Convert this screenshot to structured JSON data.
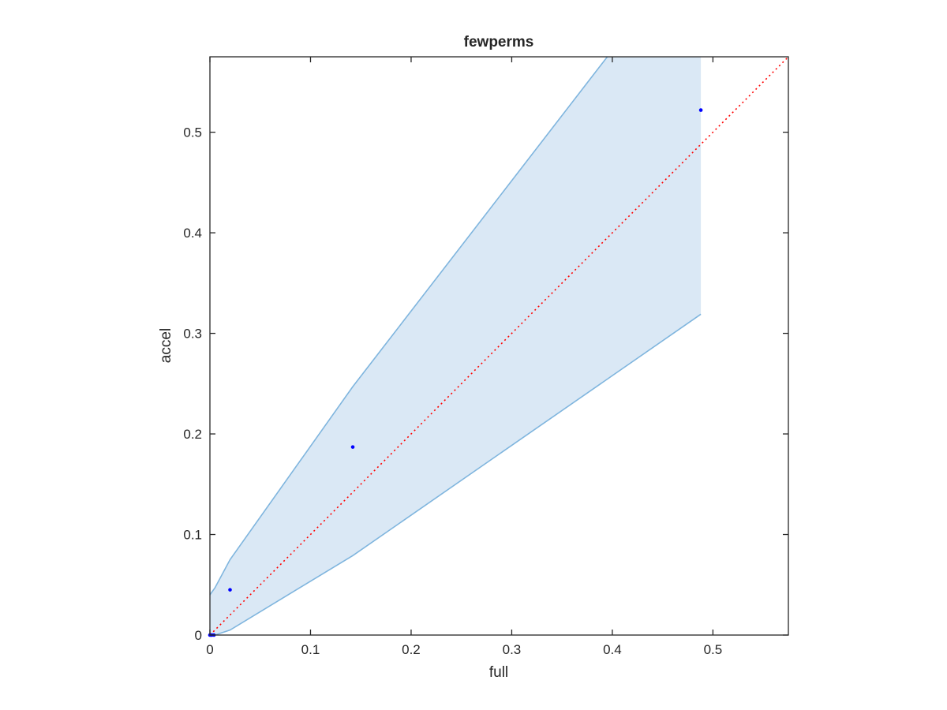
{
  "chart_data": {
    "type": "scatter",
    "title": "fewperms",
    "xlabel": "full",
    "ylabel": "accel",
    "xlim": [
      0,
      0.575
    ],
    "ylim": [
      0,
      0.575
    ],
    "xticks": [
      0,
      0.1,
      0.2,
      0.3,
      0.4,
      0.5
    ],
    "xtick_labels": [
      "0",
      "0.1",
      "0.2",
      "0.3",
      "0.4",
      "0.5"
    ],
    "yticks": [
      0,
      0.1,
      0.2,
      0.3,
      0.4,
      0.5
    ],
    "ytick_labels": [
      "0",
      "0.1",
      "0.2",
      "0.3",
      "0.4",
      "0.5"
    ],
    "grid": false,
    "legend": "none",
    "series": [
      {
        "type": "scatter",
        "color": "#0000ff",
        "points": [
          {
            "x": 0.0,
            "y": 0.0
          },
          {
            "x": 0.001,
            "y": 0.0
          },
          {
            "x": 0.002,
            "y": 0.0
          },
          {
            "x": 0.004,
            "y": 0.0
          },
          {
            "x": 0.02,
            "y": 0.045
          },
          {
            "x": 0.142,
            "y": 0.187
          },
          {
            "x": 0.488,
            "y": 0.522
          }
        ]
      },
      {
        "type": "reference-line",
        "style": "dotted",
        "color": "#ff0000",
        "points": [
          {
            "x": 0,
            "y": 0
          },
          {
            "x": 0.575,
            "y": 0.575
          }
        ]
      }
    ],
    "band": {
      "fill": "#dae8f5",
      "stroke": "#7fb5de",
      "upper": [
        {
          "x": 0.0,
          "y": 0.04
        },
        {
          "x": 0.005,
          "y": 0.047
        },
        {
          "x": 0.02,
          "y": 0.075
        },
        {
          "x": 0.142,
          "y": 0.247
        },
        {
          "x": 0.395,
          "y": 0.575
        }
      ],
      "top_clip": [
        {
          "x": 0.395,
          "y": 0.575
        },
        {
          "x": 0.488,
          "y": 0.575
        }
      ],
      "lower": [
        {
          "x": 0.0,
          "y": 0.0
        },
        {
          "x": 0.005,
          "y": 0.0
        },
        {
          "x": 0.02,
          "y": 0.005
        },
        {
          "x": 0.142,
          "y": 0.079
        },
        {
          "x": 0.488,
          "y": 0.319
        }
      ]
    }
  }
}
